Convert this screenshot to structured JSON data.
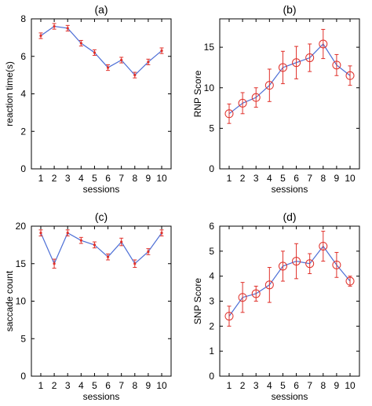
{
  "chart_data": [
    {
      "type": "line",
      "title": "(a)",
      "xlabel": "sessions",
      "ylabel": "reaction time(s)",
      "categories": [
        "1",
        "2",
        "3",
        "4",
        "5",
        "6",
        "7",
        "8",
        "9",
        "10"
      ],
      "x": [
        1,
        2,
        3,
        4,
        5,
        6,
        7,
        8,
        9,
        10
      ],
      "ylim": [
        0,
        8
      ],
      "yticks": [
        "0",
        "2",
        "4",
        "6",
        "8"
      ],
      "marker": "none",
      "series": [
        {
          "values": [
            7.1,
            7.6,
            7.5,
            6.7,
            6.2,
            5.4,
            5.8,
            5.0,
            5.7,
            6.3
          ],
          "errors": [
            0.15,
            0.15,
            0.15,
            0.15,
            0.15,
            0.15,
            0.15,
            0.15,
            0.15,
            0.15
          ]
        }
      ],
      "line_color": "#4d6fd6",
      "error_color": "#e0302a"
    },
    {
      "type": "line",
      "title": "(b)",
      "xlabel": "sessions",
      "ylabel": "RNP Score",
      "categories": [
        "1",
        "2",
        "3",
        "4",
        "5",
        "6",
        "7",
        "8",
        "9",
        "10"
      ],
      "x": [
        1,
        2,
        3,
        4,
        5,
        6,
        7,
        8,
        9,
        10
      ],
      "ylim": [
        0,
        18.5
      ],
      "yticks": [
        "0",
        "5",
        "10",
        "15"
      ],
      "marker": "circle",
      "series": [
        {
          "values": [
            6.8,
            8.1,
            8.8,
            10.3,
            12.5,
            13.1,
            13.7,
            15.4,
            12.8,
            11.5
          ],
          "errors": [
            1.2,
            1.3,
            1.2,
            2.0,
            2.0,
            2.0,
            1.7,
            1.8,
            1.3,
            1.2
          ]
        }
      ],
      "line_color": "#4d6fd6",
      "error_color": "#e0302a"
    },
    {
      "type": "line",
      "title": "(c)",
      "xlabel": "sessions",
      "ylabel": "saccade count",
      "categories": [
        "1",
        "2",
        "3",
        "4",
        "5",
        "6",
        "7",
        "8",
        "9",
        "10"
      ],
      "x": [
        1,
        2,
        3,
        4,
        5,
        6,
        7,
        8,
        9,
        10
      ],
      "ylim": [
        0,
        20
      ],
      "yticks": [
        "0",
        "5",
        "10",
        "15",
        "20"
      ],
      "marker": "none",
      "series": [
        {
          "values": [
            19.1,
            15.0,
            19.1,
            18.1,
            17.5,
            15.9,
            17.9,
            15.0,
            16.6,
            19.1
          ],
          "errors": [
            0.4,
            0.6,
            0.4,
            0.4,
            0.4,
            0.4,
            0.5,
            0.5,
            0.4,
            0.4
          ]
        }
      ],
      "line_color": "#4d6fd6",
      "error_color": "#e0302a"
    },
    {
      "type": "line",
      "title": "(d)",
      "xlabel": "sessions",
      "ylabel": "SNP Score",
      "categories": [
        "1",
        "2",
        "3",
        "4",
        "5",
        "6",
        "7",
        "8",
        "9",
        "10"
      ],
      "x": [
        1,
        2,
        3,
        4,
        5,
        6,
        7,
        8,
        9,
        10
      ],
      "ylim": [
        0,
        6
      ],
      "yticks": [
        "0",
        "1",
        "2",
        "3",
        "4",
        "5",
        "6"
      ],
      "marker": "circle",
      "series": [
        {
          "values": [
            2.4,
            3.15,
            3.3,
            3.65,
            4.4,
            4.6,
            4.5,
            5.2,
            4.45,
            3.8
          ],
          "errors": [
            0.4,
            0.6,
            0.3,
            0.7,
            0.6,
            0.7,
            0.4,
            0.6,
            0.5,
            0.2
          ]
        }
      ],
      "line_color": "#4d6fd6",
      "error_color": "#e0302a"
    }
  ]
}
